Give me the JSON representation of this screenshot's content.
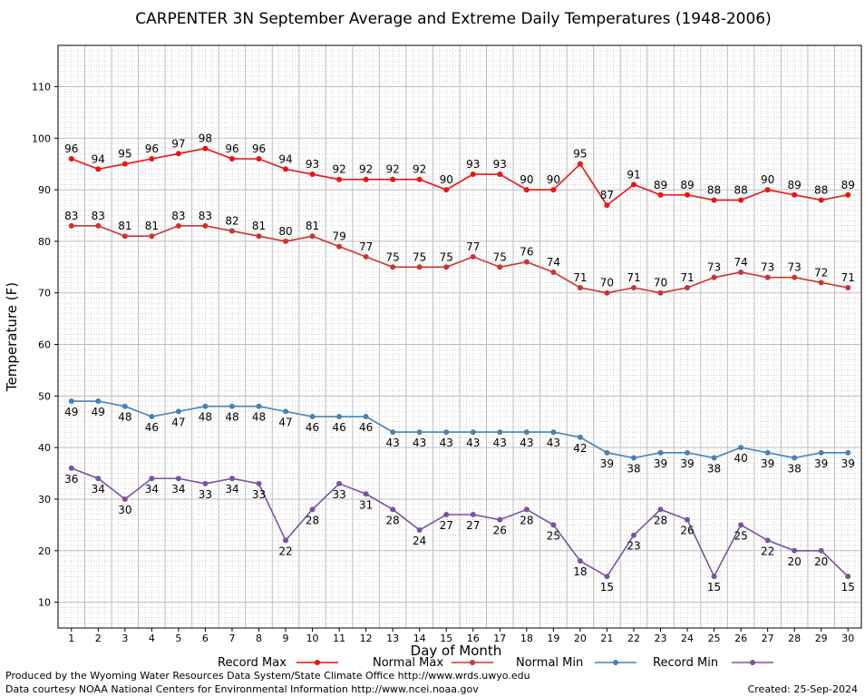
{
  "chart_data": {
    "type": "line",
    "title": "CARPENTER 3N September Average and Extreme Daily Temperatures (1948-2006)",
    "xlabel": "Day of Month",
    "ylabel": "Temperature (F)",
    "x": [
      1,
      2,
      3,
      4,
      5,
      6,
      7,
      8,
      9,
      10,
      11,
      12,
      13,
      14,
      15,
      16,
      17,
      18,
      19,
      20,
      21,
      22,
      23,
      24,
      25,
      26,
      27,
      28,
      29,
      30
    ],
    "xlim": [
      0.5,
      30.5
    ],
    "ylim": [
      5,
      118
    ],
    "yticks": [
      10,
      20,
      30,
      40,
      50,
      60,
      70,
      80,
      90,
      100,
      110
    ],
    "grid": true,
    "legend_position": "bottom",
    "series": [
      {
        "name": "Record Max",
        "color": "#ee1111",
        "values": [
          96,
          94,
          95,
          96,
          97,
          98,
          96,
          96,
          94,
          93,
          92,
          92,
          92,
          92,
          90,
          93,
          93,
          90,
          90,
          95,
          87,
          91,
          89,
          89,
          88,
          88,
          90,
          89,
          88,
          89
        ]
      },
      {
        "name": "Normal Max",
        "color": "#cc3333",
        "values": [
          83,
          83,
          81,
          81,
          83,
          83,
          82,
          81,
          80,
          81,
          79,
          77,
          75,
          75,
          75,
          77,
          75,
          76,
          74,
          71,
          70,
          71,
          70,
          71,
          73,
          74,
          73,
          73,
          72,
          71
        ]
      },
      {
        "name": "Normal Min",
        "color": "#4682b4",
        "values": [
          49,
          49,
          48,
          46,
          47,
          48,
          48,
          48,
          47,
          46,
          46,
          46,
          43,
          43,
          43,
          43,
          43,
          43,
          43,
          42,
          39,
          38,
          39,
          39,
          38,
          40,
          39,
          38,
          39,
          39
        ]
      },
      {
        "name": "Record Min",
        "color": "#7b52a0",
        "values": [
          36,
          34,
          30,
          34,
          34,
          33,
          34,
          33,
          22,
          28,
          33,
          31,
          28,
          24,
          27,
          27,
          26,
          28,
          25,
          18,
          15,
          23,
          28,
          26,
          15,
          25,
          22,
          20,
          20,
          15
        ]
      }
    ]
  },
  "footer": {
    "produced_by": "Produced by the Wyoming Water Resources Data System/State Climate Office http://www.wrds.uwyo.edu",
    "data_courtesy": "Data courtesy NOAA National Centers for Environmental Information http://www.ncei.noaa.gov",
    "created": "Created:  25-Sep-2024"
  }
}
